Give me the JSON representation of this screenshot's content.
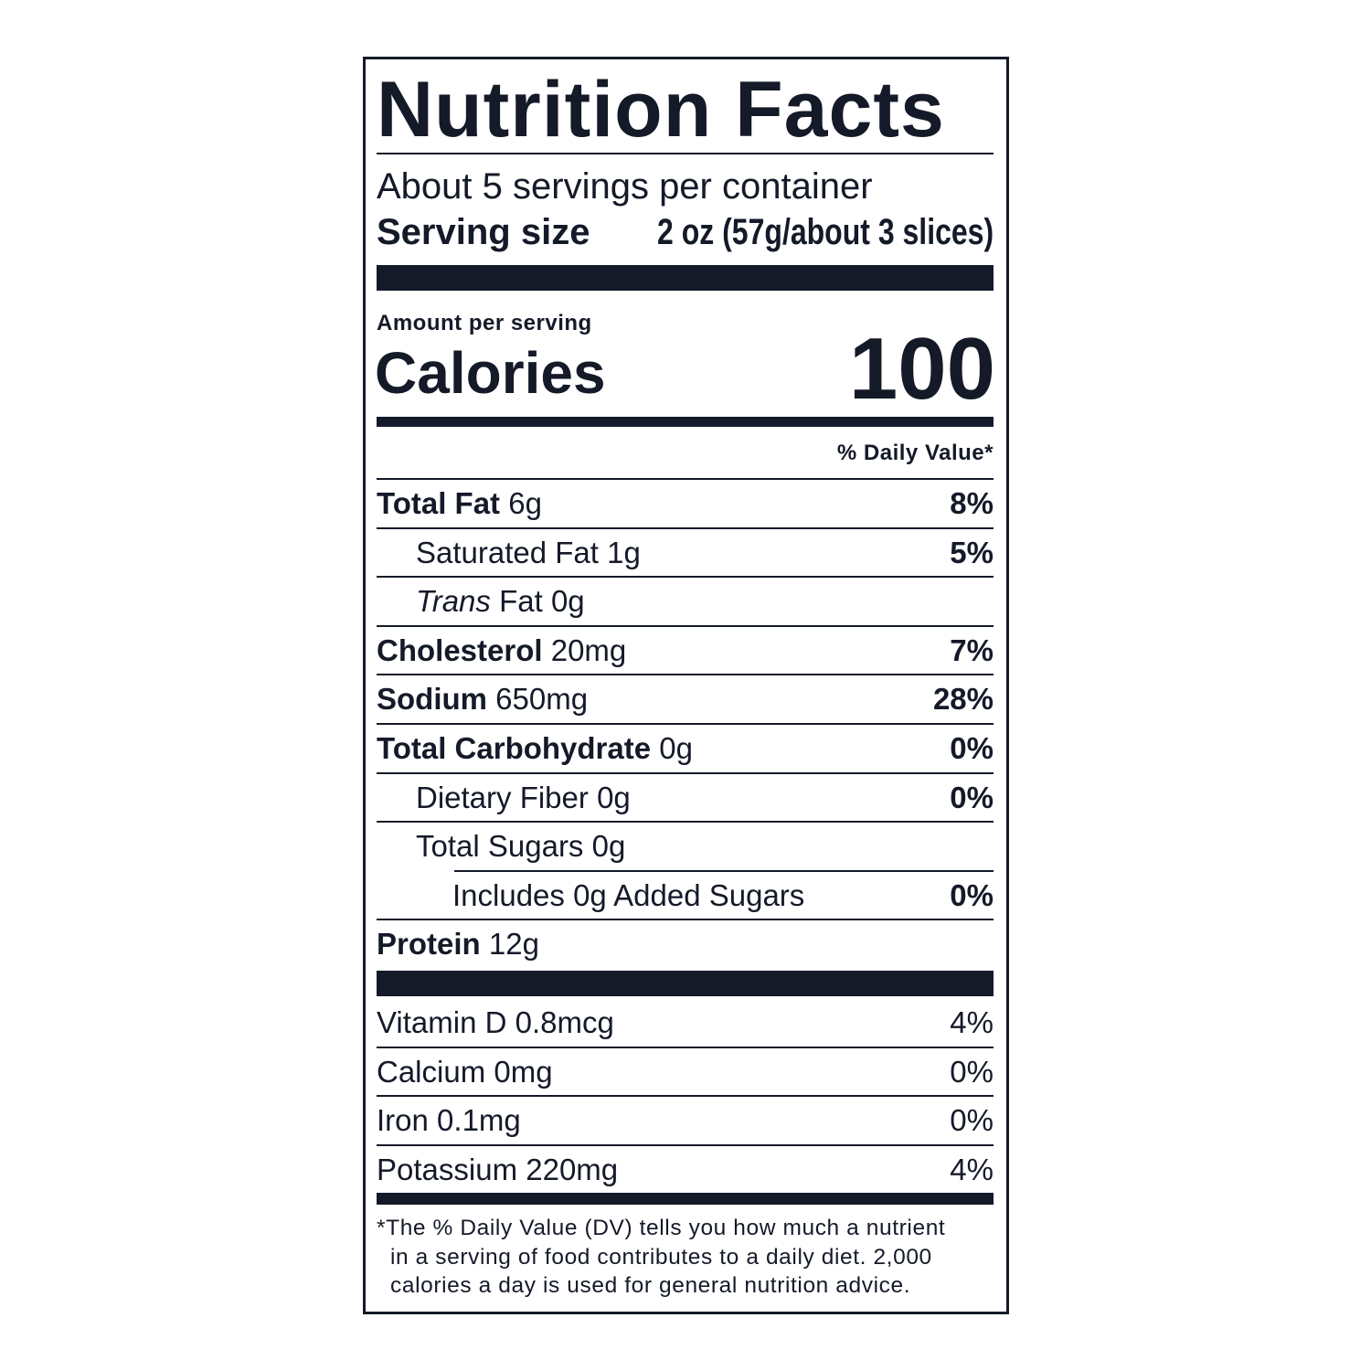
{
  "header": {
    "title": "Nutrition Facts",
    "servings": "About 5 servings per container",
    "serving_size_label": "Serving size",
    "serving_size_value": "2 oz (57g/about 3 slices)"
  },
  "calories": {
    "amount_label": "Amount per serving",
    "label": "Calories",
    "value": 100
  },
  "daily_value_heading": "% Daily Value*",
  "nutrients": [
    {
      "name": "Total Fat",
      "amount": "6g",
      "dv": "8%"
    },
    {
      "name": "Saturated Fat",
      "amount": "1g",
      "dv": "5%"
    },
    {
      "name": "Trans",
      "name_rest": "Fat",
      "amount": "0g"
    },
    {
      "name": "Cholesterol",
      "amount": "20mg",
      "dv": "7%"
    },
    {
      "name": "Sodium",
      "amount": "650mg",
      "dv": "28%"
    },
    {
      "name": "Total Carbohydrate",
      "amount": "0g",
      "dv": "0%"
    },
    {
      "name": "Dietary Fiber",
      "amount": "0g",
      "dv": "0%"
    },
    {
      "name": "Total Sugars",
      "amount": "0g"
    },
    {
      "name": "Includes 0g Added Sugars",
      "dv": "0%"
    },
    {
      "name": "Protein",
      "amount": "12g"
    }
  ],
  "vitamins": [
    {
      "name": "Vitamin D",
      "amount": "0.8mcg",
      "dv": "4%"
    },
    {
      "name": "Calcium",
      "amount": "0mg",
      "dv": "0%"
    },
    {
      "name": "Iron",
      "amount": "0.1mg",
      "dv": "0%"
    },
    {
      "name": "Potassium",
      "amount": "220mg",
      "dv": "4%"
    }
  ],
  "footnote": [
    "*The % Daily Value (DV) tells you how much a nutrient",
    "in a serving of food contributes to a daily diet. 2,000",
    "calories a day is used for general nutrition advice."
  ]
}
